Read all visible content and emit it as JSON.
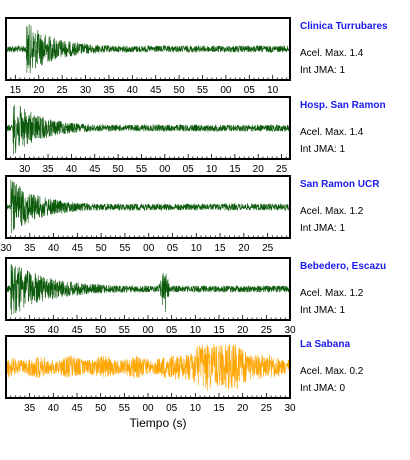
{
  "chart_data": {
    "type": "line",
    "xlabel": "Tiempo (s)",
    "colors": {
      "strong": "#0b5a0b",
      "weak": "#ffa500",
      "frame": "#000000",
      "name": "#1a1aee"
    },
    "panels": [
      {
        "station": "Clinica Turrubares",
        "acel_max": "Acel. Max. 1.4",
        "int_jma": "Int JMA: 1",
        "color": "#0b5a0b",
        "ticks": [
          "15",
          "20",
          "25",
          "30",
          "35",
          "40",
          "45",
          "50",
          "55",
          "00",
          "05",
          "10"
        ],
        "xlim": [
          13,
          73.7
        ],
        "tick_start": 15,
        "burst_at": 17.3,
        "amplitude": 1.4
      },
      {
        "station": "Hosp. San Ramon",
        "acel_max": "Acel. Max. 1.4",
        "int_jma": "Int JMA: 1",
        "color": "#0b5a0b",
        "ticks": [
          "30",
          "35",
          "40",
          "45",
          "50",
          "55",
          "00",
          "05",
          "10",
          "15",
          "20",
          "25"
        ],
        "xlim": [
          26,
          86.8
        ],
        "tick_start": 30,
        "burst_at": 27.5,
        "amplitude": 1.4
      },
      {
        "station": "San Ramon UCR",
        "acel_max": "Acel. Max. 1.2",
        "int_jma": "Int JMA: 1",
        "color": "#0b5a0b",
        "ticks": [
          "30",
          "35",
          "40",
          "45",
          "50",
          "55",
          "00",
          "05",
          "10",
          "15",
          "20",
          "25"
        ],
        "xlim": [
          30,
          89.7
        ],
        "tick_start": 30,
        "burst_at": 31,
        "amplitude": 1.2
      },
      {
        "station": "Bebedero, Escazu",
        "acel_max": "Acel. Max. 1.2",
        "int_jma": "Int JMA: 1",
        "color": "#0b5a0b",
        "ticks": [
          "35",
          "40",
          "45",
          "50",
          "55",
          "00",
          "05",
          "10",
          "15",
          "20",
          "25",
          "30"
        ],
        "xlim": [
          30,
          90
        ],
        "tick_start": 35,
        "burst_at": 31,
        "second_burst_at": 63.5,
        "amplitude": 1.2
      },
      {
        "station": "La Sabana",
        "acel_max": "Acel. Max. 0.2",
        "int_jma": "Int JMA: 0",
        "color": "#ffa500",
        "ticks": [
          "35",
          "40",
          "45",
          "50",
          "55",
          "00",
          "05",
          "10",
          "15",
          "20",
          "25",
          "30"
        ],
        "xlim": [
          30,
          90
        ],
        "tick_start": 35,
        "burst_at": 75,
        "amplitude": 0.2
      }
    ]
  }
}
